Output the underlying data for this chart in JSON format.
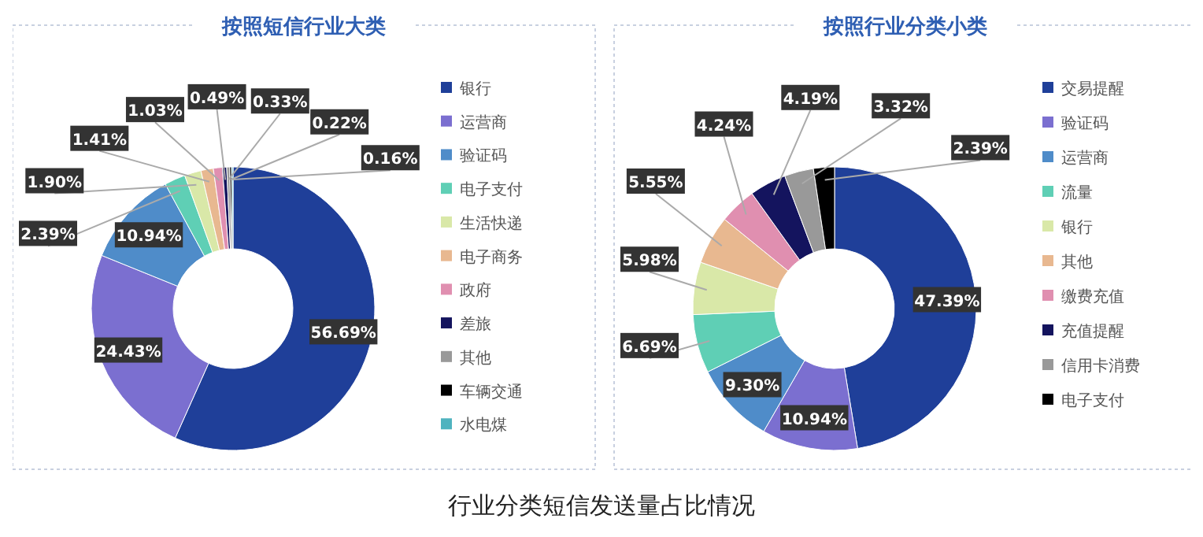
{
  "chart_data": [
    {
      "type": "donut",
      "title": "按照短信行业大类",
      "categories": [
        "银行",
        "运营商",
        "验证码",
        "电子支付",
        "生活快递",
        "电子商务",
        "政府",
        "差旅",
        "其他",
        "车辆交通",
        "水电煤"
      ],
      "values": [
        56.69,
        24.43,
        10.94,
        2.39,
        1.9,
        1.41,
        1.03,
        0.49,
        0.33,
        0.22,
        0.16
      ],
      "value_labels": [
        "56.69%",
        "24.43%",
        "10.94%",
        "2.39%",
        "1.90%",
        "1.41%",
        "1.03%",
        "0.49%",
        "0.33%",
        "0.22%",
        "0.16%"
      ],
      "colors": [
        "#1f3f99",
        "#7b6fd0",
        "#4f8cc9",
        "#5fcfb5",
        "#d9e8a8",
        "#e8b890",
        "#e08fb0",
        "#14145e",
        "#999999",
        "#000000",
        "#4fb3bf"
      ],
      "legend": "right",
      "annotations": [
        "行业分类短信发送量占比情况"
      ]
    },
    {
      "type": "donut",
      "title": "按照行业分类小类",
      "categories": [
        "交易提醒",
        "验证码",
        "运营商",
        "流量",
        "银行",
        "其他",
        "缴费充值",
        "充值提醒",
        "信用卡消费",
        "电子支付"
      ],
      "values": [
        47.39,
        10.94,
        9.3,
        6.69,
        5.98,
        5.55,
        4.24,
        4.19,
        3.32,
        2.39
      ],
      "value_labels": [
        "47.39%",
        "10.94%",
        "9.30%",
        "6.69%",
        "5.98%",
        "5.55%",
        "4.24%",
        "4.19%",
        "3.32%",
        "2.39%"
      ],
      "colors": [
        "#1f3f99",
        "#7b6fd0",
        "#4f8cc9",
        "#5fcfb5",
        "#d9e8a8",
        "#e8b890",
        "#e08fb0",
        "#14145e",
        "#999999",
        "#000000"
      ],
      "legend": "right"
    }
  ]
}
